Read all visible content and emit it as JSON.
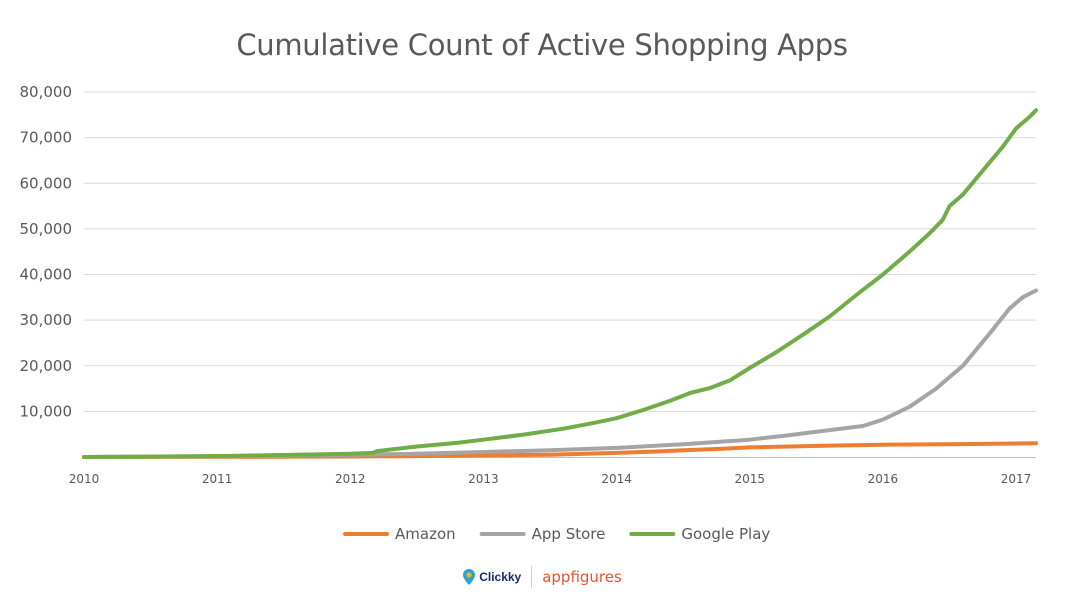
{
  "chart_data": {
    "type": "line",
    "title": "Cumulative Count of Active Shopping Apps",
    "xlabel": "",
    "ylabel": "",
    "ylim": [
      0,
      80000
    ],
    "xlim": [
      2010,
      2017.15
    ],
    "y_ticks": [
      "10,000",
      "20,000",
      "30,000",
      "40,000",
      "50,000",
      "60,000",
      "70,000",
      "80,000"
    ],
    "y_tick_values": [
      10000,
      20000,
      30000,
      40000,
      50000,
      60000,
      70000,
      80000
    ],
    "x_ticks": [
      "2010",
      "2011",
      "2012",
      "2013",
      "2014",
      "2015",
      "2016",
      "2017"
    ],
    "x_tick_values": [
      2010,
      2011,
      2012,
      2013,
      2014,
      2015,
      2016,
      2017
    ],
    "grid": true,
    "legend_position": "bottom",
    "series": [
      {
        "name": "Amazon",
        "color": "#ED7D31",
        "x": [
          2010,
          2011,
          2012,
          2012.5,
          2013,
          2013.5,
          2014,
          2014.3,
          2014.5,
          2014.8,
          2015,
          2015.3,
          2015.6,
          2016,
          2016.5,
          2017,
          2017.15
        ],
        "y": [
          0,
          50,
          100,
          200,
          350,
          500,
          900,
          1200,
          1500,
          1800,
          2100,
          2300,
          2500,
          2700,
          2800,
          2950,
          3000
        ]
      },
      {
        "name": "App Store",
        "color": "#A5A5A5",
        "x": [
          2010,
          2011,
          2012,
          2012.5,
          2013,
          2013.5,
          2014,
          2014.5,
          2015,
          2015.3,
          2015.6,
          2015.85,
          2016,
          2016.2,
          2016.4,
          2016.6,
          2016.8,
          2016.95,
          2017.05,
          2017.15
        ],
        "y": [
          0,
          200,
          450,
          700,
          1100,
          1500,
          2000,
          2800,
          3800,
          4800,
          5900,
          6800,
          8200,
          11000,
          15000,
          20000,
          27000,
          32500,
          35000,
          36500
        ]
      },
      {
        "name": "Google Play",
        "color": "#70AD47",
        "x": [
          2010,
          2011,
          2012,
          2012.17,
          2012.2,
          2012.5,
          2012.8,
          2013,
          2013.3,
          2013.6,
          2013.8,
          2014,
          2014.2,
          2014.4,
          2014.55,
          2014.7,
          2014.85,
          2015,
          2015.2,
          2015.4,
          2015.6,
          2015.8,
          2016,
          2016.2,
          2016.35,
          2016.45,
          2016.5,
          2016.6,
          2016.7,
          2016.8,
          2016.9,
          2017,
          2017.1,
          2017.15
        ],
        "y": [
          0,
          200,
          700,
          900,
          1300,
          2300,
          3100,
          3800,
          4900,
          6200,
          7300,
          8500,
          10300,
          12300,
          14000,
          15100,
          16800,
          19500,
          23000,
          26800,
          30800,
          35500,
          40000,
          45000,
          49000,
          52000,
          55000,
          57500,
          61000,
          64500,
          68000,
          72000,
          74500,
          76000
        ]
      }
    ]
  },
  "legend": {
    "items": [
      {
        "label": "Amazon",
        "color": "#ED7D31"
      },
      {
        "label": "App Store",
        "color": "#A5A5A5"
      },
      {
        "label": "Google Play",
        "color": "#70AD47"
      }
    ]
  },
  "branding": {
    "clickky": "Clickky",
    "appfigures": "appfigures"
  },
  "colors": {
    "grid": "#d9d9d9",
    "axis": "#bfbfbf",
    "text": "#595959",
    "clickky": "#1a2a6c",
    "appfigures": "#e8542e"
  }
}
